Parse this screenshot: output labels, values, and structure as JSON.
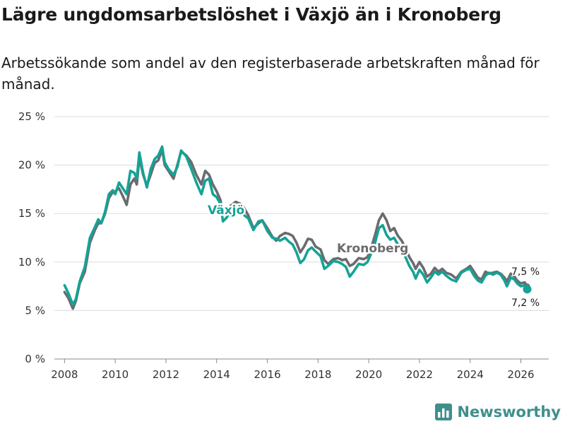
{
  "header": {
    "title": "Lägre ungdomsarbetslöshet i Växjö än i Kronoberg",
    "subtitle": "Arbetssökande som andel av den registerbaserade arbetskraften månad för månad."
  },
  "brand": {
    "name": "Newsworthy",
    "color": "#3f8f8c"
  },
  "colors": {
    "vaxjo": "#14a396",
    "kronoberg": "#6b6b6f",
    "grid": "#dcdcdc",
    "text": "#1a1a1a"
  },
  "chart_data": {
    "type": "line",
    "title": "Lägre ungdomsarbetslöshet i Växjö än i Kronoberg",
    "xlabel": "",
    "ylabel": "",
    "ylim": [
      0,
      25
    ],
    "xlim": [
      2007.6,
      2027.1
    ],
    "yticks": [
      0,
      5,
      10,
      15,
      20,
      25
    ],
    "ytick_labels": [
      "0 %",
      "5 %",
      "10 %",
      "15 %",
      "20 %",
      "25 %"
    ],
    "xticks": [
      2008,
      2010,
      2012,
      2014,
      2016,
      2018,
      2020,
      2022,
      2024,
      2026
    ],
    "xtick_labels": [
      "2008",
      "2010",
      "2012",
      "2014",
      "2016",
      "2018",
      "2020",
      "2022",
      "2024",
      "2026"
    ],
    "grid": true,
    "series": [
      {
        "name": "Växjö",
        "label": "Växjö",
        "color": "#14a396",
        "end_label": "7,2 %",
        "end_value": 7.2,
        "points": [
          [
            2008.0,
            7.6
          ],
          [
            2008.15,
            6.8
          ],
          [
            2008.33,
            5.6
          ],
          [
            2008.45,
            6.2
          ],
          [
            2008.6,
            8.0
          ],
          [
            2008.8,
            9.5
          ],
          [
            2009.0,
            12.5
          ],
          [
            2009.2,
            13.6
          ],
          [
            2009.33,
            14.4
          ],
          [
            2009.45,
            14.0
          ],
          [
            2009.6,
            15.2
          ],
          [
            2009.75,
            17.0
          ],
          [
            2009.9,
            17.4
          ],
          [
            2010.0,
            17.0
          ],
          [
            2010.15,
            18.2
          ],
          [
            2010.3,
            17.6
          ],
          [
            2010.45,
            17.0
          ],
          [
            2010.6,
            19.4
          ],
          [
            2010.75,
            19.2
          ],
          [
            2010.85,
            18.6
          ],
          [
            2010.95,
            21.3
          ],
          [
            2011.1,
            19.2
          ],
          [
            2011.25,
            17.7
          ],
          [
            2011.4,
            19.6
          ],
          [
            2011.55,
            20.6
          ],
          [
            2011.7,
            21.0
          ],
          [
            2011.85,
            21.9
          ],
          [
            2011.95,
            20.3
          ],
          [
            2012.1,
            19.6
          ],
          [
            2012.3,
            19.0
          ],
          [
            2012.45,
            19.8
          ],
          [
            2012.6,
            21.5
          ],
          [
            2012.8,
            20.9
          ],
          [
            2013.0,
            19.6
          ],
          [
            2013.2,
            18.2
          ],
          [
            2013.4,
            17.0
          ],
          [
            2013.55,
            18.4
          ],
          [
            2013.7,
            18.6
          ],
          [
            2013.85,
            17.0
          ],
          [
            2014.0,
            16.7
          ],
          [
            2014.15,
            16.0
          ],
          [
            2014.25,
            14.2
          ],
          [
            2014.4,
            14.6
          ],
          [
            2014.55,
            15.4
          ],
          [
            2014.75,
            15.8
          ],
          [
            2014.95,
            15.3
          ],
          [
            2015.1,
            14.8
          ],
          [
            2015.25,
            14.5
          ],
          [
            2015.45,
            13.3
          ],
          [
            2015.65,
            14.2
          ],
          [
            2015.8,
            14.3
          ],
          [
            2016.0,
            13.2
          ],
          [
            2016.2,
            12.5
          ],
          [
            2016.35,
            12.4
          ],
          [
            2016.5,
            12.2
          ],
          [
            2016.7,
            12.5
          ],
          [
            2016.85,
            12.1
          ],
          [
            2017.0,
            11.8
          ],
          [
            2017.15,
            11.0
          ],
          [
            2017.3,
            9.9
          ],
          [
            2017.45,
            10.3
          ],
          [
            2017.6,
            11.2
          ],
          [
            2017.75,
            11.5
          ],
          [
            2017.9,
            11.1
          ],
          [
            2018.1,
            10.6
          ],
          [
            2018.25,
            9.3
          ],
          [
            2018.4,
            9.6
          ],
          [
            2018.6,
            10.1
          ],
          [
            2018.8,
            10.0
          ],
          [
            2018.95,
            9.8
          ],
          [
            2019.1,
            9.5
          ],
          [
            2019.25,
            8.5
          ],
          [
            2019.4,
            9.0
          ],
          [
            2019.6,
            9.8
          ],
          [
            2019.8,
            9.7
          ],
          [
            2019.95,
            10.0
          ],
          [
            2020.1,
            10.9
          ],
          [
            2020.25,
            12.0
          ],
          [
            2020.4,
            13.5
          ],
          [
            2020.55,
            13.8
          ],
          [
            2020.7,
            12.8
          ],
          [
            2020.85,
            12.3
          ],
          [
            2021.0,
            12.5
          ],
          [
            2021.15,
            11.8
          ],
          [
            2021.3,
            11.2
          ],
          [
            2021.45,
            10.5
          ],
          [
            2021.6,
            9.6
          ],
          [
            2021.75,
            9.0
          ],
          [
            2021.85,
            8.3
          ],
          [
            2022.0,
            9.2
          ],
          [
            2022.15,
            8.7
          ],
          [
            2022.3,
            7.9
          ],
          [
            2022.45,
            8.4
          ],
          [
            2022.6,
            9.0
          ],
          [
            2022.75,
            8.7
          ],
          [
            2022.9,
            9.0
          ],
          [
            2023.05,
            8.6
          ],
          [
            2023.25,
            8.2
          ],
          [
            2023.45,
            8.0
          ],
          [
            2023.65,
            8.9
          ],
          [
            2023.85,
            9.2
          ],
          [
            2024.0,
            9.3
          ],
          [
            2024.15,
            8.6
          ],
          [
            2024.3,
            8.1
          ],
          [
            2024.45,
            7.9
          ],
          [
            2024.6,
            8.6
          ],
          [
            2024.75,
            8.9
          ],
          [
            2024.9,
            8.7
          ],
          [
            2025.05,
            8.9
          ],
          [
            2025.2,
            8.7
          ],
          [
            2025.35,
            8.1
          ],
          [
            2025.45,
            7.5
          ],
          [
            2025.6,
            8.4
          ],
          [
            2025.75,
            8.2
          ],
          [
            2025.85,
            7.8
          ],
          [
            2026.0,
            7.5
          ],
          [
            2026.15,
            7.6
          ],
          [
            2026.25,
            7.2
          ]
        ]
      },
      {
        "name": "Kronoberg",
        "label": "Kronoberg",
        "color": "#6b6b6f",
        "end_label": "7,5 %",
        "end_value": 7.5,
        "points": [
          [
            2008.0,
            6.9
          ],
          [
            2008.15,
            6.3
          ],
          [
            2008.33,
            5.2
          ],
          [
            2008.45,
            6.0
          ],
          [
            2008.6,
            7.8
          ],
          [
            2008.8,
            9.0
          ],
          [
            2009.0,
            12.0
          ],
          [
            2009.2,
            13.3
          ],
          [
            2009.33,
            14.0
          ],
          [
            2009.45,
            14.0
          ],
          [
            2009.6,
            15.0
          ],
          [
            2009.75,
            16.6
          ],
          [
            2009.9,
            17.2
          ],
          [
            2010.0,
            17.3
          ],
          [
            2010.15,
            17.6
          ],
          [
            2010.3,
            16.8
          ],
          [
            2010.45,
            15.9
          ],
          [
            2010.6,
            18.0
          ],
          [
            2010.75,
            18.6
          ],
          [
            2010.85,
            18.0
          ],
          [
            2010.95,
            20.8
          ],
          [
            2011.1,
            19.0
          ],
          [
            2011.25,
            17.9
          ],
          [
            2011.4,
            19.0
          ],
          [
            2011.55,
            20.2
          ],
          [
            2011.7,
            20.5
          ],
          [
            2011.85,
            21.6
          ],
          [
            2011.95,
            20.0
          ],
          [
            2012.1,
            19.4
          ],
          [
            2012.3,
            18.6
          ],
          [
            2012.45,
            20.0
          ],
          [
            2012.6,
            21.4
          ],
          [
            2012.8,
            21.0
          ],
          [
            2013.0,
            20.3
          ],
          [
            2013.2,
            19.0
          ],
          [
            2013.4,
            18.0
          ],
          [
            2013.55,
            19.4
          ],
          [
            2013.7,
            19.0
          ],
          [
            2013.85,
            18.0
          ],
          [
            2014.0,
            17.3
          ],
          [
            2014.15,
            16.4
          ],
          [
            2014.25,
            15.0
          ],
          [
            2014.4,
            15.3
          ],
          [
            2014.55,
            15.8
          ],
          [
            2014.75,
            16.2
          ],
          [
            2014.95,
            16.0
          ],
          [
            2015.1,
            15.5
          ],
          [
            2015.25,
            14.8
          ],
          [
            2015.45,
            13.5
          ],
          [
            2015.65,
            14.0
          ],
          [
            2015.8,
            14.3
          ],
          [
            2016.0,
            13.5
          ],
          [
            2016.2,
            12.6
          ],
          [
            2016.35,
            12.2
          ],
          [
            2016.5,
            12.7
          ],
          [
            2016.7,
            13.0
          ],
          [
            2016.85,
            12.9
          ],
          [
            2017.0,
            12.7
          ],
          [
            2017.15,
            12.0
          ],
          [
            2017.3,
            11.0
          ],
          [
            2017.45,
            11.6
          ],
          [
            2017.6,
            12.4
          ],
          [
            2017.75,
            12.3
          ],
          [
            2017.9,
            11.6
          ],
          [
            2018.1,
            11.3
          ],
          [
            2018.25,
            10.2
          ],
          [
            2018.4,
            9.8
          ],
          [
            2018.6,
            10.3
          ],
          [
            2018.8,
            10.4
          ],
          [
            2018.95,
            10.2
          ],
          [
            2019.1,
            10.3
          ],
          [
            2019.25,
            9.6
          ],
          [
            2019.4,
            9.8
          ],
          [
            2019.6,
            10.4
          ],
          [
            2019.8,
            10.3
          ],
          [
            2019.95,
            10.5
          ],
          [
            2020.1,
            11.5
          ],
          [
            2020.25,
            12.8
          ],
          [
            2020.4,
            14.3
          ],
          [
            2020.55,
            15.0
          ],
          [
            2020.7,
            14.3
          ],
          [
            2020.85,
            13.2
          ],
          [
            2021.0,
            13.5
          ],
          [
            2021.15,
            12.7
          ],
          [
            2021.3,
            12.2
          ],
          [
            2021.45,
            11.4
          ],
          [
            2021.6,
            10.5
          ],
          [
            2021.75,
            9.9
          ],
          [
            2021.85,
            9.3
          ],
          [
            2022.0,
            10.0
          ],
          [
            2022.15,
            9.4
          ],
          [
            2022.3,
            8.5
          ],
          [
            2022.45,
            8.8
          ],
          [
            2022.6,
            9.4
          ],
          [
            2022.75,
            9.0
          ],
          [
            2022.9,
            9.3
          ],
          [
            2023.05,
            8.9
          ],
          [
            2023.25,
            8.7
          ],
          [
            2023.45,
            8.3
          ],
          [
            2023.65,
            9.0
          ],
          [
            2023.85,
            9.3
          ],
          [
            2024.0,
            9.6
          ],
          [
            2024.15,
            9.0
          ],
          [
            2024.3,
            8.4
          ],
          [
            2024.45,
            8.2
          ],
          [
            2024.6,
            9.0
          ],
          [
            2024.75,
            8.8
          ],
          [
            2024.9,
            8.9
          ],
          [
            2025.05,
            9.0
          ],
          [
            2025.2,
            8.8
          ],
          [
            2025.35,
            8.4
          ],
          [
            2025.45,
            8.0
          ],
          [
            2025.6,
            8.8
          ],
          [
            2025.75,
            8.5
          ],
          [
            2025.85,
            8.1
          ],
          [
            2026.0,
            7.8
          ],
          [
            2026.15,
            7.9
          ],
          [
            2026.25,
            7.5
          ]
        ]
      }
    ]
  }
}
